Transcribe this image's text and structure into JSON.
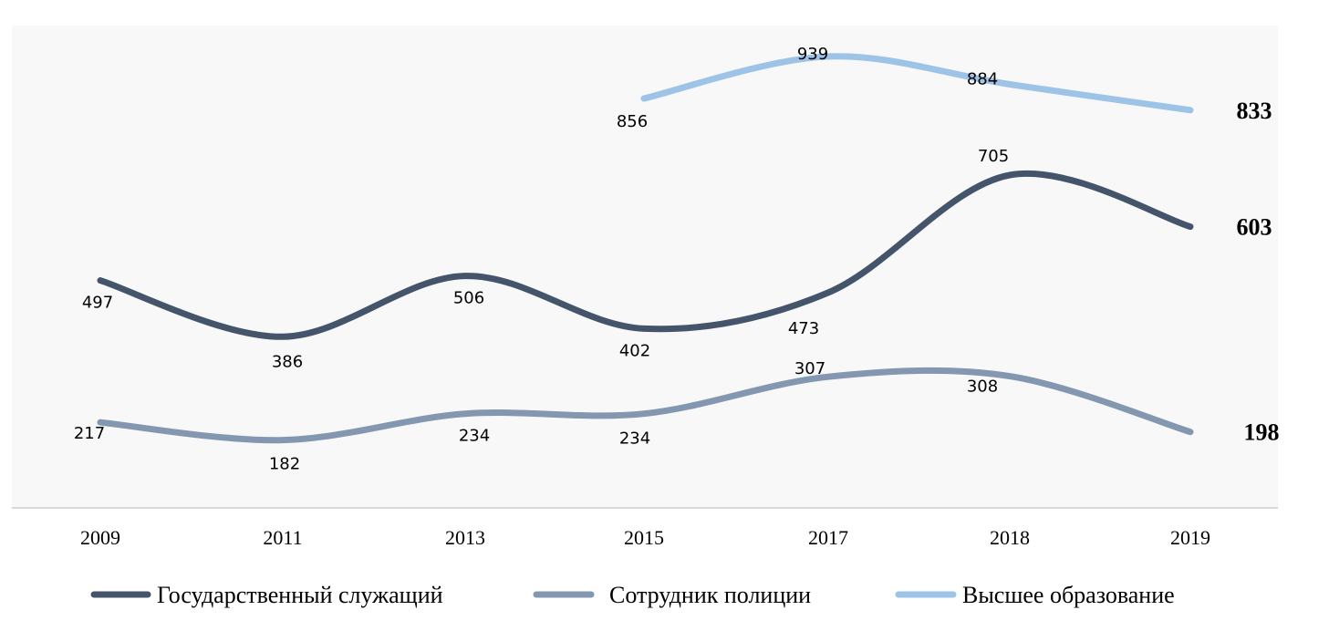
{
  "chart_data": {
    "type": "line",
    "categories": [
      "2009",
      "2011",
      "2013",
      "2015",
      "2017",
      "2018",
      "2019"
    ],
    "series": [
      {
        "name": "Государственный служащий",
        "color": "#44546a",
        "values": [
          497,
          386,
          506,
          402,
          473,
          705,
          603
        ],
        "labels": [
          "497",
          "386",
          "506",
          "402",
          "473",
          "705",
          "603"
        ]
      },
      {
        "name": "Сотрудник полиции",
        "color": "#8497b0",
        "values": [
          217,
          182,
          234,
          234,
          307,
          308,
          198
        ],
        "labels": [
          "217",
          "182",
          "234",
          "234",
          "307",
          "308",
          "198"
        ]
      },
      {
        "name": "Высшее образование",
        "color": "#9dc3e6",
        "values": [
          null,
          null,
          null,
          856,
          939,
          884,
          833
        ],
        "labels": [
          "",
          "",
          "",
          "856",
          "939",
          "884",
          "833"
        ]
      }
    ],
    "title": "",
    "xlabel": "",
    "ylabel": "",
    "ylim": [
      50,
      1000
    ],
    "grid": false,
    "smooth": true,
    "legend_position": "bottom"
  }
}
